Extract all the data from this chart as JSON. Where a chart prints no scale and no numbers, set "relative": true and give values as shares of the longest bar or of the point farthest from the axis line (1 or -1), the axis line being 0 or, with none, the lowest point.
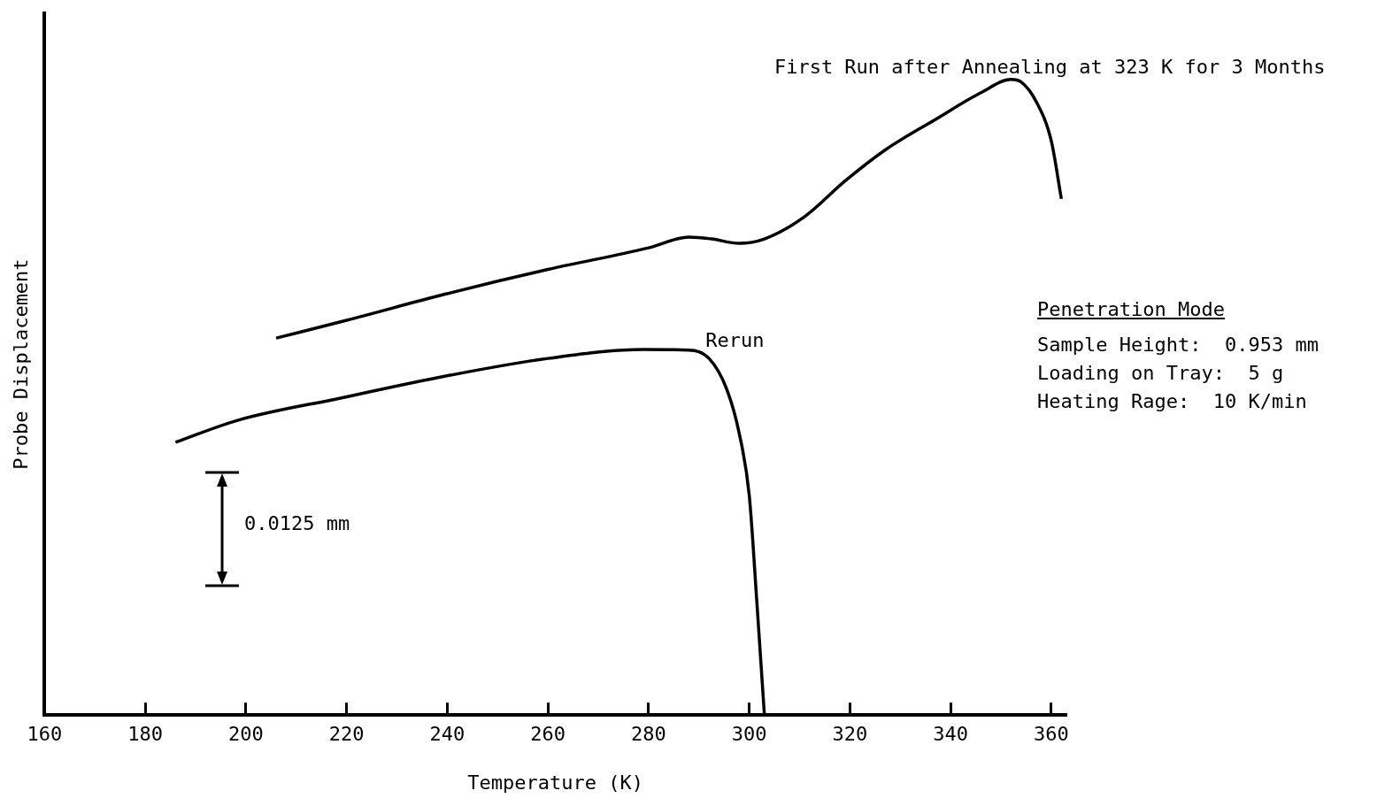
{
  "chart_data": {
    "type": "line",
    "xlabel": "Temperature (K)",
    "ylabel": "Probe Displacement",
    "relative": true,
    "xlim": [
      160,
      363
    ],
    "xticks": [
      160,
      180,
      200,
      220,
      240,
      260,
      280,
      300,
      320,
      340,
      360
    ],
    "grid": false,
    "legend": false,
    "marker": "none",
    "line_style": "solid",
    "annotations": [
      "0.0125 mm",
      "Penetration Mode",
      "Sample Height:  0.953 mm",
      "Loading on Tray:  5 g",
      "Heating Rage:  10 K/min"
    ],
    "series": [
      {
        "name": "First Run after Annealing at 323 K for 3 Months",
        "color": "#000000",
        "x": [
          206,
          220,
          239.5,
          260,
          280,
          288,
          292.5,
          298,
          303,
          311,
          319,
          327,
          337,
          346,
          352,
          354,
          357,
          360,
          362
        ],
        "values": [
          0.593,
          0.621,
          0.662,
          0.701,
          0.735,
          0.752,
          0.749,
          0.742,
          0.749,
          0.784,
          0.84,
          0.889,
          0.937,
          0.979,
          1,
          0.996,
          0.965,
          0.903,
          0.812
        ]
      },
      {
        "name": "Rerun",
        "color": "#000000",
        "x": [
          186,
          198.5,
          219,
          239.5,
          260,
          279,
          288,
          292,
          295.5,
          298,
          300,
          301.5,
          303
        ],
        "values": [
          0.429,
          0.464,
          0.499,
          0.533,
          0.561,
          0.575,
          0.574,
          0.561,
          0.513,
          0.443,
          0.345,
          0.178,
          0
        ]
      }
    ]
  }
}
